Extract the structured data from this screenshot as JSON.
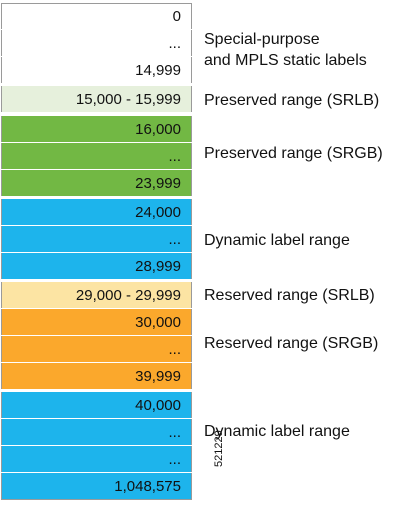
{
  "colors": {
    "white": "#ffffff",
    "light_green": "#e6f0dc",
    "green": "#72b844",
    "blue": "#1db4ec",
    "light_yellow": "#fce4a3",
    "orange": "#fba82c"
  },
  "cells": [
    {
      "text": "0",
      "color": "white"
    },
    {
      "text": "...",
      "color": "white"
    },
    {
      "text": "14,999",
      "color": "white"
    },
    {
      "text": "15,000 - 15,999",
      "color": "light_green"
    },
    {
      "text": "16,000",
      "color": "green"
    },
    {
      "text": "...",
      "color": "green"
    },
    {
      "text": "23,999",
      "color": "green"
    },
    {
      "text": "24,000",
      "color": "blue"
    },
    {
      "text": "...",
      "color": "blue"
    },
    {
      "text": "28,999",
      "color": "blue"
    },
    {
      "text": "29,000 - 29,999",
      "color": "light_yellow"
    },
    {
      "text": "30,000",
      "color": "orange"
    },
    {
      "text": "...",
      "color": "orange"
    },
    {
      "text": "39,999",
      "color": "orange"
    },
    {
      "text": "40,000",
      "color": "blue"
    },
    {
      "text": "...",
      "color": "blue"
    },
    {
      "text": "...",
      "color": "blue"
    },
    {
      "text": "1,048,575",
      "color": "blue"
    }
  ],
  "labels": {
    "special_line1": "Special-purpose",
    "special_line2": "and MPLS static labels",
    "preserved_srlb": "Preserved range (SRLB)",
    "preserved_srgb": "Preserved range (SRGB)",
    "dynamic_1": "Dynamic label range",
    "reserved_srlb": "Reserved range (SRLB)",
    "reserved_srgb": "Reserved range (SRGB)",
    "dynamic_2": "Dynamic label range"
  },
  "figure_id": "521229"
}
